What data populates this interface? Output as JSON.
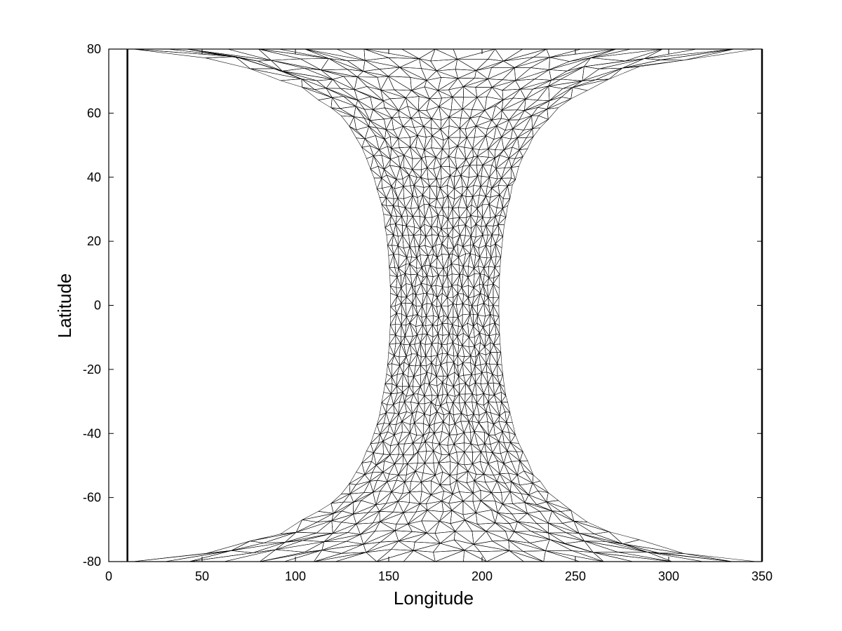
{
  "chart_data": {
    "type": "scatter",
    "subtype": "triangular-mesh",
    "title": "",
    "xlabel": "Longitude",
    "ylabel": "Latitude",
    "xlim": [
      0,
      350
    ],
    "ylim": [
      -80,
      80
    ],
    "xticks": [
      0,
      50,
      100,
      150,
      200,
      250,
      300,
      350
    ],
    "yticks": [
      -80,
      -60,
      -40,
      -20,
      0,
      20,
      40,
      60,
      80
    ],
    "grid": false,
    "legend": "none",
    "line_color": "#000000",
    "background_color": "#ffffff",
    "mesh": {
      "center_longitude": 180,
      "equator_half_width_deg": 29,
      "pole_latitude": 80,
      "pole_longitude_min": 10,
      "pole_longitude_max": 350,
      "boundary_profile": "half_width = 29 / cos(latitude)",
      "element": "triangles"
    },
    "vertical_boundaries_x": [
      10,
      350
    ]
  }
}
